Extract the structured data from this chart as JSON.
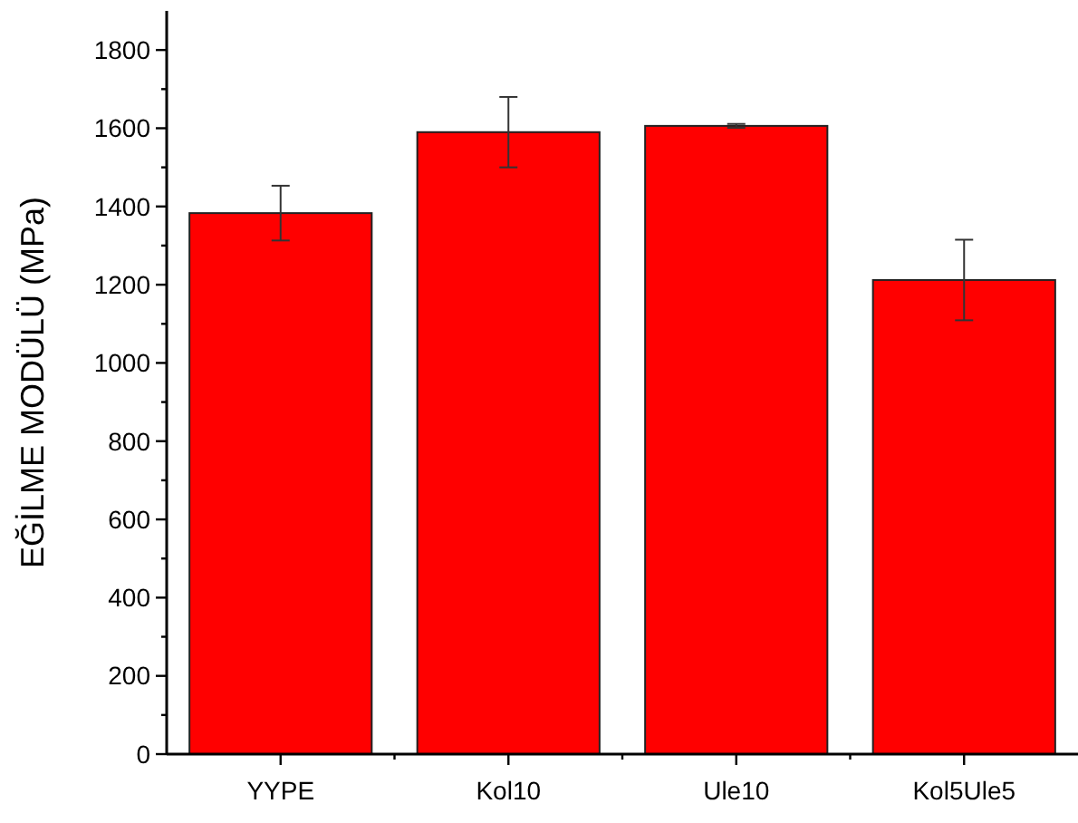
{
  "chart_data": {
    "type": "bar",
    "ylabel": "EĞİLME MODÜLÜ (MPa)",
    "categories": [
      "YYPE",
      "Kol10",
      "Ule10",
      "Kol5Ule5"
    ],
    "values": [
      1383,
      1590,
      1606,
      1212
    ],
    "errors": [
      70,
      90,
      5,
      103
    ],
    "color": "#ff0000",
    "ylim": [
      0,
      1900
    ],
    "yticks": [
      0,
      {
        "value": 100,
        "label": null
      },
      200,
      {
        "value": 300,
        "label": null
      },
      400,
      {
        "value": 500,
        "label": null
      },
      600,
      {
        "value": 700,
        "label": null
      },
      800,
      {
        "value": 900,
        "label": null
      },
      1000,
      {
        "value": 1100,
        "label": null
      },
      1200,
      {
        "value": 1300,
        "label": null
      },
      1400,
      {
        "value": 1500,
        "label": null
      },
      1600,
      {
        "value": 1700,
        "label": null
      },
      1800
    ],
    "grid": false
  }
}
